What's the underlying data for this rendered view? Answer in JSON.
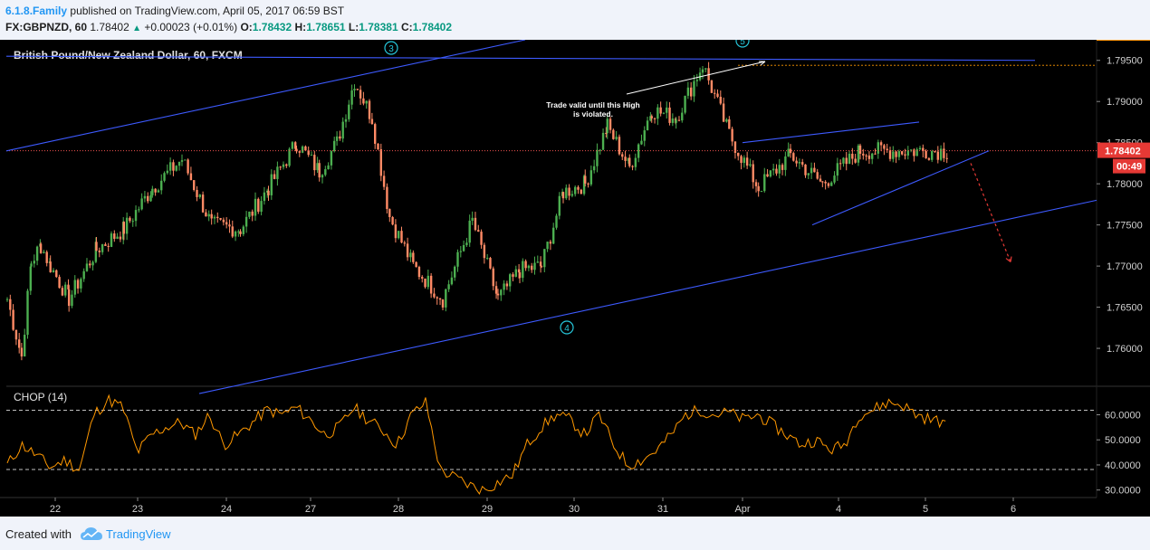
{
  "header": {
    "author": "6.1.8.Family",
    "published_text": "published on TradingView.com, April 05, 2017 06:59 BST",
    "symbol": "FX:GBPNZD, 60",
    "last": "1.78402",
    "change_icon": "up-triangle-icon",
    "change": "+0.00023 (+0.01%)",
    "o_label": "O:",
    "o_value": "1.78432",
    "h_label": "H:",
    "h_value": "1.78651",
    "l_label": "L:",
    "l_value": "1.78381",
    "c_label": "C:",
    "c_value": "1.78402"
  },
  "chart_data": [
    {
      "type": "candlestick",
      "title": "British Pound/New Zealand Dollar, 60, FXCM",
      "x_categories": [
        "22",
        "23",
        "24",
        "27",
        "28",
        "29",
        "30",
        "31",
        "Apr",
        "4",
        "5",
        "6"
      ],
      "ylim": [
        1.7555,
        1.7975
      ],
      "y_ticks": [
        "1.79500",
        "1.79000",
        "1.78500",
        "1.78000",
        "1.77500",
        "1.77000",
        "1.76500",
        "1.76000"
      ],
      "current_price": "1.78402",
      "countdown": "00:49",
      "ohlc_last": {
        "open": 1.78432,
        "high": 1.78651,
        "low": 1.78381,
        "close": 1.78402
      },
      "price_path": [
        {
          "x": "22",
          "y": 1.766
        },
        {
          "x": "22",
          "y": 1.759
        },
        {
          "x": "22",
          "y": 1.7705
        },
        {
          "x": "22",
          "y": 1.7725
        },
        {
          "x": "22",
          "y": 1.77
        },
        {
          "x": "23",
          "y": 1.766
        },
        {
          "x": "23",
          "y": 1.772
        },
        {
          "x": "23",
          "y": 1.7745
        },
        {
          "x": "24",
          "y": 1.7795
        },
        {
          "x": "24",
          "y": 1.783
        },
        {
          "x": "24",
          "y": 1.775
        },
        {
          "x": "27",
          "y": 1.7745
        },
        {
          "x": "27",
          "y": 1.7795
        },
        {
          "x": "27",
          "y": 1.785
        },
        {
          "x": "28",
          "y": 1.7815
        },
        {
          "x": "28",
          "y": 1.785
        },
        {
          "x": "28",
          "y": 1.7925
        },
        {
          "x": "28",
          "y": 1.788
        },
        {
          "x": "28",
          "y": 1.776
        },
        {
          "x": "29",
          "y": 1.77
        },
        {
          "x": "29",
          "y": 1.766
        },
        {
          "x": "29",
          "y": 1.7755
        },
        {
          "x": "30",
          "y": 1.766
        },
        {
          "x": "30",
          "y": 1.7695
        },
        {
          "x": "30",
          "y": 1.77
        },
        {
          "x": "30",
          "y": 1.779
        },
        {
          "x": "31",
          "y": 1.78
        },
        {
          "x": "31",
          "y": 1.787
        },
        {
          "x": "31",
          "y": 1.782
        },
        {
          "x": "31",
          "y": 1.789
        },
        {
          "x": "Apr",
          "y": 1.788
        },
        {
          "x": "Apr",
          "y": 1.7945
        },
        {
          "x": "Apr",
          "y": 1.786
        },
        {
          "x": "4",
          "y": 1.7795
        },
        {
          "x": "4",
          "y": 1.7835
        },
        {
          "x": "4",
          "y": 1.78
        },
        {
          "x": "5",
          "y": 1.784
        },
        {
          "x": "5",
          "y": 1.784
        }
      ],
      "annotations": {
        "waves": [
          "3",
          "4",
          "5"
        ],
        "note": "Trade valid until this High is violated.",
        "drawn_lines": [
          {
            "name": "upper-channel-line",
            "from": {
              "x": "22",
              "y": 1.784
            },
            "to": {
              "x": "28",
              "y": 1.7975
            }
          },
          {
            "name": "lower-channel-line",
            "from": {
              "x": "22",
              "y": 1.7545
            },
            "to": {
              "x": "6",
              "y": 1.778
            }
          },
          {
            "name": "top-horizontal-line",
            "from": {
              "x": "22",
              "y": 1.7955
            },
            "to": {
              "x": "5",
              "y": 1.795
            }
          },
          {
            "name": "wedge-upper-line",
            "from": {
              "x": "Apr",
              "y": 1.785
            },
            "to": {
              "x": "5",
              "y": 1.7875
            }
          },
          {
            "name": "wedge-lower-line",
            "from": {
              "x": "4",
              "y": 1.775
            },
            "to": {
              "x": "5",
              "y": 1.784
            }
          },
          {
            "name": "high-level-line",
            "from": {
              "x": "Apr",
              "y": 1.7944
            },
            "to": {
              "x": "6",
              "y": 1.7944
            }
          }
        ],
        "projection": {
          "from": {
            "x": "5",
            "y": 1.7825
          },
          "to": {
            "x": "6",
            "y": 1.7705
          }
        }
      },
      "colors": {
        "background": "#000000",
        "up": "#4caf50",
        "down": "#ff8a65",
        "lines": "#3d5afe",
        "price_line": "#ef5350",
        "projection": "#e53935",
        "wave_label": "#26c6da"
      }
    },
    {
      "type": "line",
      "title": "CHOP (14)",
      "ylim": [
        27.0,
        71.0
      ],
      "y_ticks": [
        "60.0000",
        "50.0000",
        "40.0000",
        "30.0000"
      ],
      "levels": [
        61.8,
        38.2
      ],
      "values": [
        40,
        48,
        44,
        39,
        42,
        38,
        60,
        66,
        63,
        45,
        52,
        55,
        57,
        52,
        60,
        48,
        52,
        57,
        62,
        60,
        63,
        58,
        52,
        55,
        63,
        58,
        54,
        48,
        60,
        65,
        38,
        35,
        32,
        30,
        33,
        36,
        48,
        55,
        60,
        58,
        52,
        60,
        48,
        40,
        42,
        46,
        52,
        60,
        62,
        60,
        61,
        58,
        60,
        56,
        52,
        48,
        50,
        46,
        48,
        60,
        62,
        65,
        64,
        60,
        58,
        57
      ],
      "current_value": "57.5",
      "colors": {
        "line": "#ff9800",
        "level": "#c0c0c0"
      }
    }
  ],
  "footer": {
    "created_with": "Created with",
    "logo_icon": "tradingview-cloud-icon",
    "brand": "TradingView"
  }
}
